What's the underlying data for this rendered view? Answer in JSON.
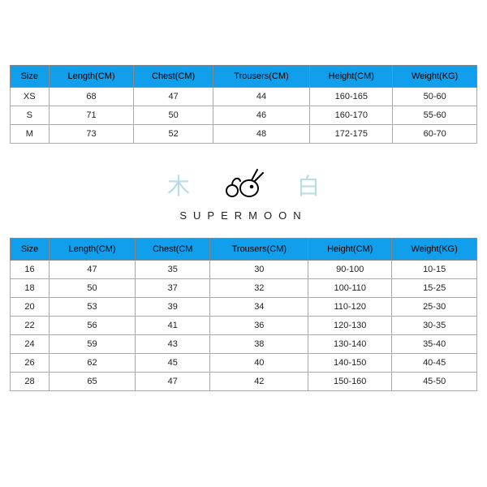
{
  "table1": {
    "header_bg": "#119fec",
    "border_color": "#888888",
    "columns": [
      "Size",
      "Length(CM)",
      "Chest(CM)",
      "Trousers(CM)",
      "Height(CM)",
      "Weight(KG)"
    ],
    "rows": [
      [
        "XS",
        "68",
        "47",
        "44",
        "160-165",
        "50-60"
      ],
      [
        "S",
        "71",
        "50",
        "46",
        "160-170",
        "55-60"
      ],
      [
        "M",
        "73",
        "52",
        "48",
        "172-175",
        "60-70"
      ]
    ]
  },
  "logo": {
    "left_char": "木",
    "right_char": "白",
    "brand": "SUPERMOON",
    "char_color": "#b8dce8",
    "brand_color": "#222222"
  },
  "table2": {
    "header_bg": "#119fec",
    "border_color": "#888888",
    "columns": [
      "Size",
      "Length(CM)",
      "Chest(CM",
      "Trousers(CM)",
      "Height(CM)",
      "Weight(KG)"
    ],
    "rows": [
      [
        "16",
        "47",
        "35",
        "30",
        "90-100",
        "10-15"
      ],
      [
        "18",
        "50",
        "37",
        "32",
        "100-110",
        "15-25"
      ],
      [
        "20",
        "53",
        "39",
        "34",
        "110-120",
        "25-30"
      ],
      [
        "22",
        "56",
        "41",
        "36",
        "120-130",
        "30-35"
      ],
      [
        "24",
        "59",
        "43",
        "38",
        "130-140",
        "35-40"
      ],
      [
        "26",
        "62",
        "45",
        "40",
        "140-150",
        "40-45"
      ],
      [
        "28",
        "65",
        "47",
        "42",
        "150-160",
        "45-50"
      ]
    ]
  }
}
